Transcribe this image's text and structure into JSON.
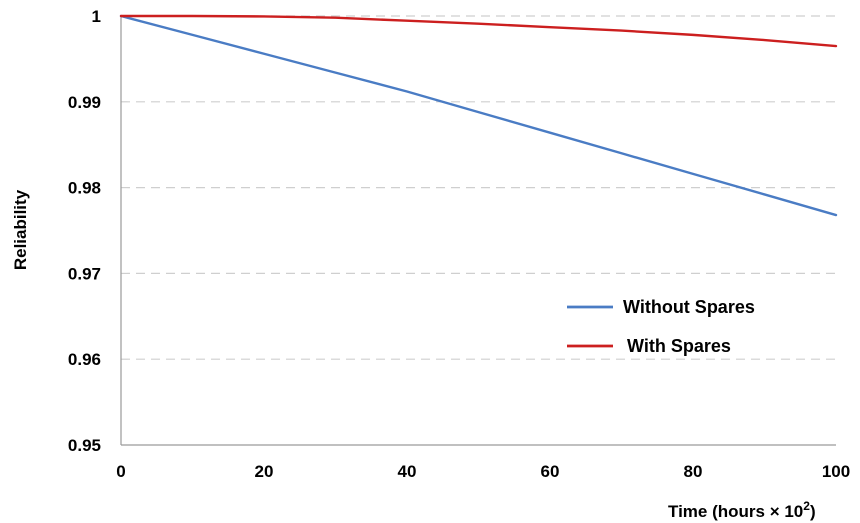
{
  "chart_data": {
    "type": "line",
    "title": "",
    "xlabel": "Time (hours × 10",
    "xlabel_sup": "2",
    "xlabel_close": ")",
    "ylabel": "Reliability",
    "xlim": [
      0,
      100
    ],
    "ylim": [
      0.95,
      1
    ],
    "x_ticks": [
      0,
      20,
      40,
      60,
      80,
      100
    ],
    "x_tick_labels": [
      "0",
      "20",
      "40",
      "60",
      "80",
      "100"
    ],
    "y_ticks": [
      0.95,
      0.96,
      0.97,
      0.98,
      0.99,
      1
    ],
    "y_tick_labels": [
      "0.95",
      "0.96",
      "0.97",
      "0.98",
      "0.99",
      "1"
    ],
    "grid": "horizontal dashed",
    "legend_position": "center-right",
    "x": [
      0,
      10,
      20,
      30,
      40,
      50,
      60,
      70,
      80,
      90,
      100
    ],
    "series": [
      {
        "name": "Without Spares",
        "color": "#4A7CC4",
        "values": [
          1.0,
          0.9978,
          0.9956,
          0.9934,
          0.9912,
          0.9888,
          0.9864,
          0.984,
          0.9816,
          0.9792,
          0.9768
        ]
      },
      {
        "name": "With Spares",
        "color": "#CC1F1F",
        "values": [
          1.0,
          1.0,
          0.99995,
          0.9998,
          0.99945,
          0.9991,
          0.9987,
          0.9983,
          0.9978,
          0.9972,
          0.9965
        ]
      }
    ]
  }
}
